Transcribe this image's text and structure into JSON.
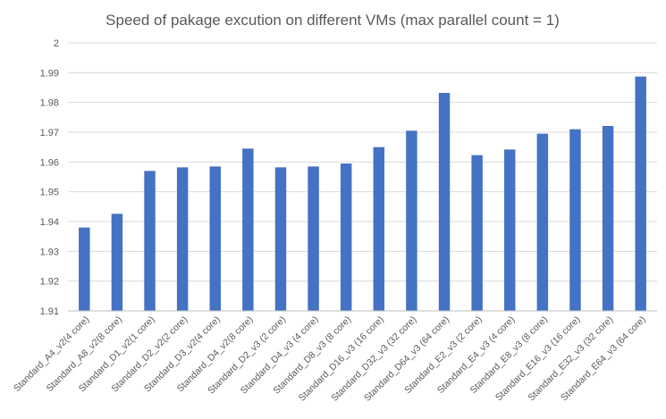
{
  "chart_data": {
    "type": "bar",
    "title": "Speed of pakage excution on different VMs (max parallel count = 1)",
    "xlabel": "",
    "ylabel": "",
    "ylim": [
      1.91,
      2.0
    ],
    "yticks": [
      "1.91",
      "1.92",
      "1.93",
      "1.94",
      "1.95",
      "1.96",
      "1.97",
      "1.98",
      "1.99",
      "2"
    ],
    "grid": true,
    "legend": "none",
    "bar_color": "#4472c4",
    "categories": [
      "Standard_A4_v2(4 core)",
      "Standard_A8_v2(8 core)",
      "Standard_D1_v2(1 core)",
      "Standard_D2_v2(2 core)",
      "Standard_D3_v2(4 core)",
      "Standard_D4_v2(8 core)",
      "Standard_D2_v3 (2 core)",
      "Standard_D4_v3 (4 core)",
      "Standard_D8_v3 (8 core)",
      "Standard_D16_v3 (16 core)",
      "Standard_D32_v3 (32 core)",
      "Standard_D64_v3 (64 core)",
      "Standard_E2_v3 (2 core)",
      "Standard_E4_v3 (4 core)",
      "Standard_E8_v3 (8 core)",
      "Standard_E16_v3 (16 core)",
      "Standard_E32_v3 (32 core)",
      "Standard_E64_v3 (64 core)"
    ],
    "values": [
      1.938,
      1.9426,
      1.957,
      1.9582,
      1.9585,
      1.9645,
      1.9582,
      1.9585,
      1.9595,
      1.965,
      1.9705,
      1.9832,
      1.9623,
      1.9642,
      1.9695,
      1.971,
      1.9721,
      1.9887
    ]
  }
}
